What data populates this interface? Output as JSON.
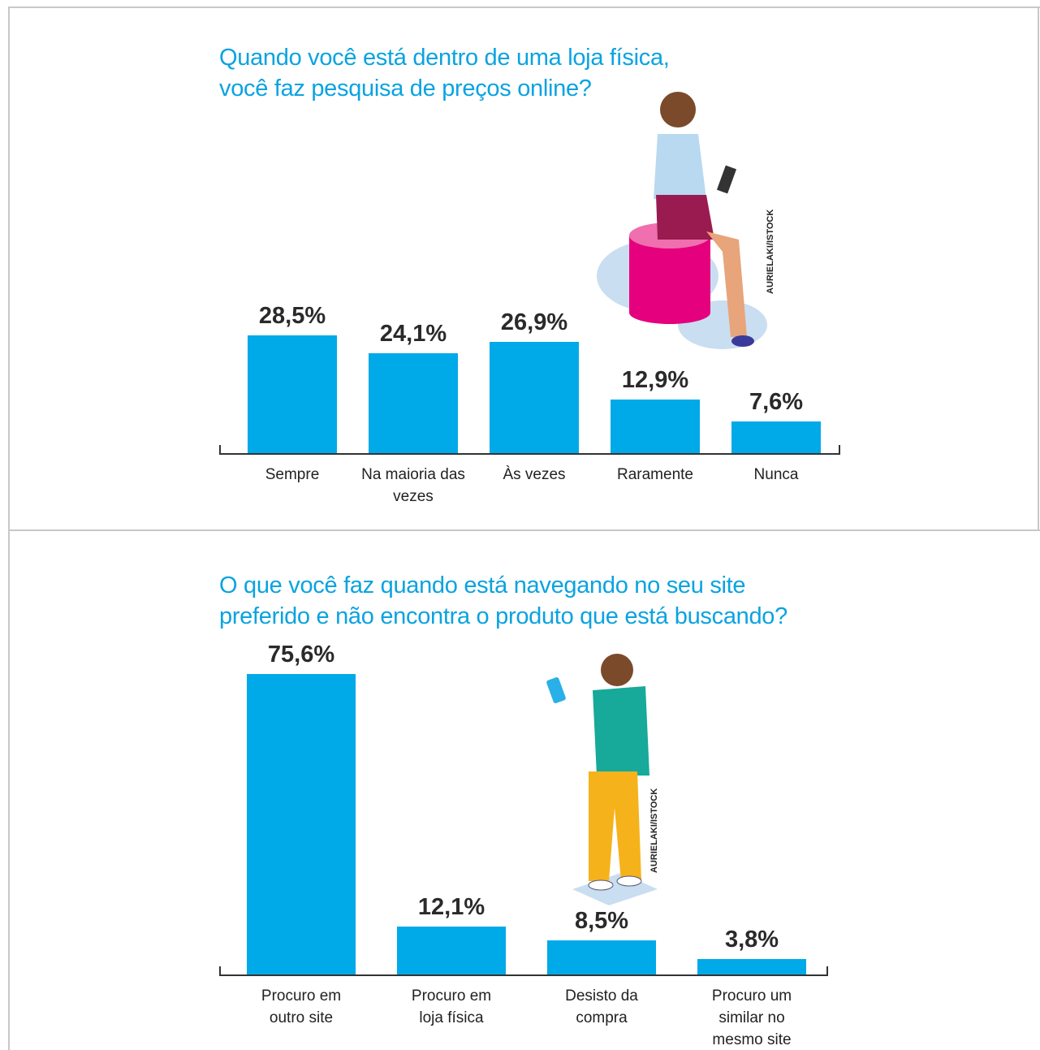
{
  "chart_data": [
    {
      "type": "bar",
      "title": "Quando você está dentro de uma loja física, você faz pesquisa de preços online?",
      "categories": [
        "Sempre",
        "Na maioria das vezes",
        "Às vezes",
        "Raramente",
        "Nunca"
      ],
      "values": [
        28.5,
        24.1,
        26.9,
        12.9,
        7.6
      ],
      "value_labels": [
        "28,5%",
        "24,1%",
        "26,9%",
        "12,9%",
        "7,6%"
      ],
      "color": "#00a9e8",
      "credit": "AURIELAKI/ISTOCK"
    },
    {
      "type": "bar",
      "title": "O que você faz quando está navegando no seu site preferido e não encontra o produto que está buscando?",
      "categories": [
        "Procuro em outro site",
        "Procuro em loja física",
        "Desisto da compra",
        "Procuro um similar no mesmo site"
      ],
      "values": [
        75.6,
        12.1,
        8.5,
        3.8
      ],
      "value_labels": [
        "75,6%",
        "12,1%",
        "8,5%",
        "3,8%"
      ],
      "color": "#00a9e8",
      "credit": "AURIELAKI/ISTOCK"
    }
  ]
}
